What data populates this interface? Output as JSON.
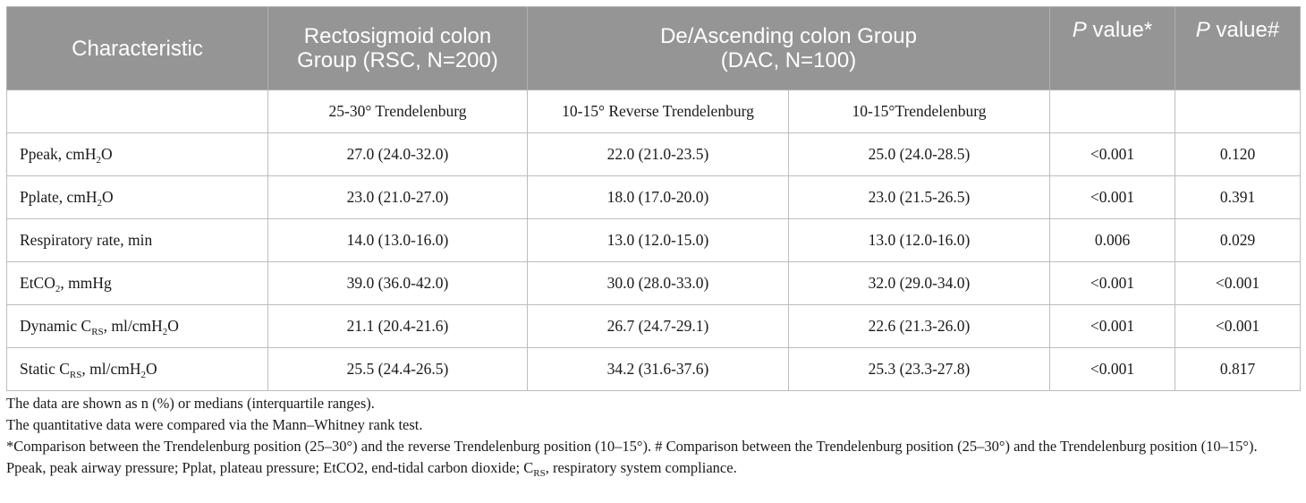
{
  "headers": {
    "characteristic": "Characteristic",
    "rsc_line1": "Rectosigmoid colon",
    "rsc_line2": "Group (RSC, N=200)",
    "dac_line1": "De/Ascending colon Group",
    "dac_line2": "(DAC, N=100)",
    "p1_italic": "P",
    "p1_rest": " value*",
    "p2_italic": "P",
    "p2_rest": " value#"
  },
  "subheaders": {
    "rsc": "25-30° Trendelenburg",
    "dac_reverse": "10-15° Reverse Trendelenburg",
    "dac_trend": "10-15°Trendelenburg"
  },
  "rows": [
    {
      "label_pre": "Ppeak, cmH",
      "label_sub": "2",
      "label_post": "O",
      "rsc": "27.0 (24.0-32.0)",
      "rev": "22.0 (21.0-23.5)",
      "trend": "25.0 (24.0-28.5)",
      "p1": "<0.001",
      "p2": "0.120"
    },
    {
      "label_pre": "Pplate, cmH",
      "label_sub": "2",
      "label_post": "O",
      "rsc": "23.0 (21.0-27.0)",
      "rev": "18.0 (17.0-20.0)",
      "trend": "23.0 (21.5-26.5)",
      "p1": "<0.001",
      "p2": "0.391"
    },
    {
      "label_pre": "Respiratory rate, min",
      "label_sub": "",
      "label_post": "",
      "rsc": "14.0 (13.0-16.0)",
      "rev": "13.0 (12.0-15.0)",
      "trend": "13.0 (12.0-16.0)",
      "p1": "0.006",
      "p2": "0.029"
    },
    {
      "label_pre": "EtCO",
      "label_sub": "2",
      "label_post": ", mmHg",
      "rsc": "39.0 (36.0-42.0)",
      "rev": "30.0 (28.0-33.0)",
      "trend": "32.0 (29.0-34.0)",
      "p1": "<0.001",
      "p2": "<0.001"
    },
    {
      "label_pre": "Dynamic C",
      "label_sub": "RS",
      "label_post": ", ml/cmH",
      "label_sub2": "2",
      "label_post2": "O",
      "rsc": "21.1 (20.4-21.6)",
      "rev": "26.7 (24.7-29.1)",
      "trend": "22.6 (21.3-26.0)",
      "p1": "<0.001",
      "p2": "<0.001"
    },
    {
      "label_pre": "Static C",
      "label_sub": "RS",
      "label_post": ", ml/cmH",
      "label_sub2": "2",
      "label_post2": "O",
      "rsc": "25.5 (24.4-26.5)",
      "rev": "34.2 (31.6-37.6)",
      "trend": "25.3 (23.3-27.8)",
      "p1": "<0.001",
      "p2": "0.817"
    }
  ],
  "notes": {
    "line1": "The data are shown as n (%) or medians (interquartile ranges).",
    "line2": "The quantitative data were compared via the Mann–Whitney rank test.",
    "line3": "*Comparison between the Trendelenburg position (25–30°) and the reverse Trendelenburg position (10–15°). # Comparison between the Trendelenburg position (25–30°) and the Trendelenburg position (10–15°).",
    "line4_pre": "Ppeak, peak airway pressure; Pplat, plateau pressure; EtCO2, end-tidal carbon dioxide; C",
    "line4_sub": "RS",
    "line4_post": ", respiratory system compliance."
  }
}
